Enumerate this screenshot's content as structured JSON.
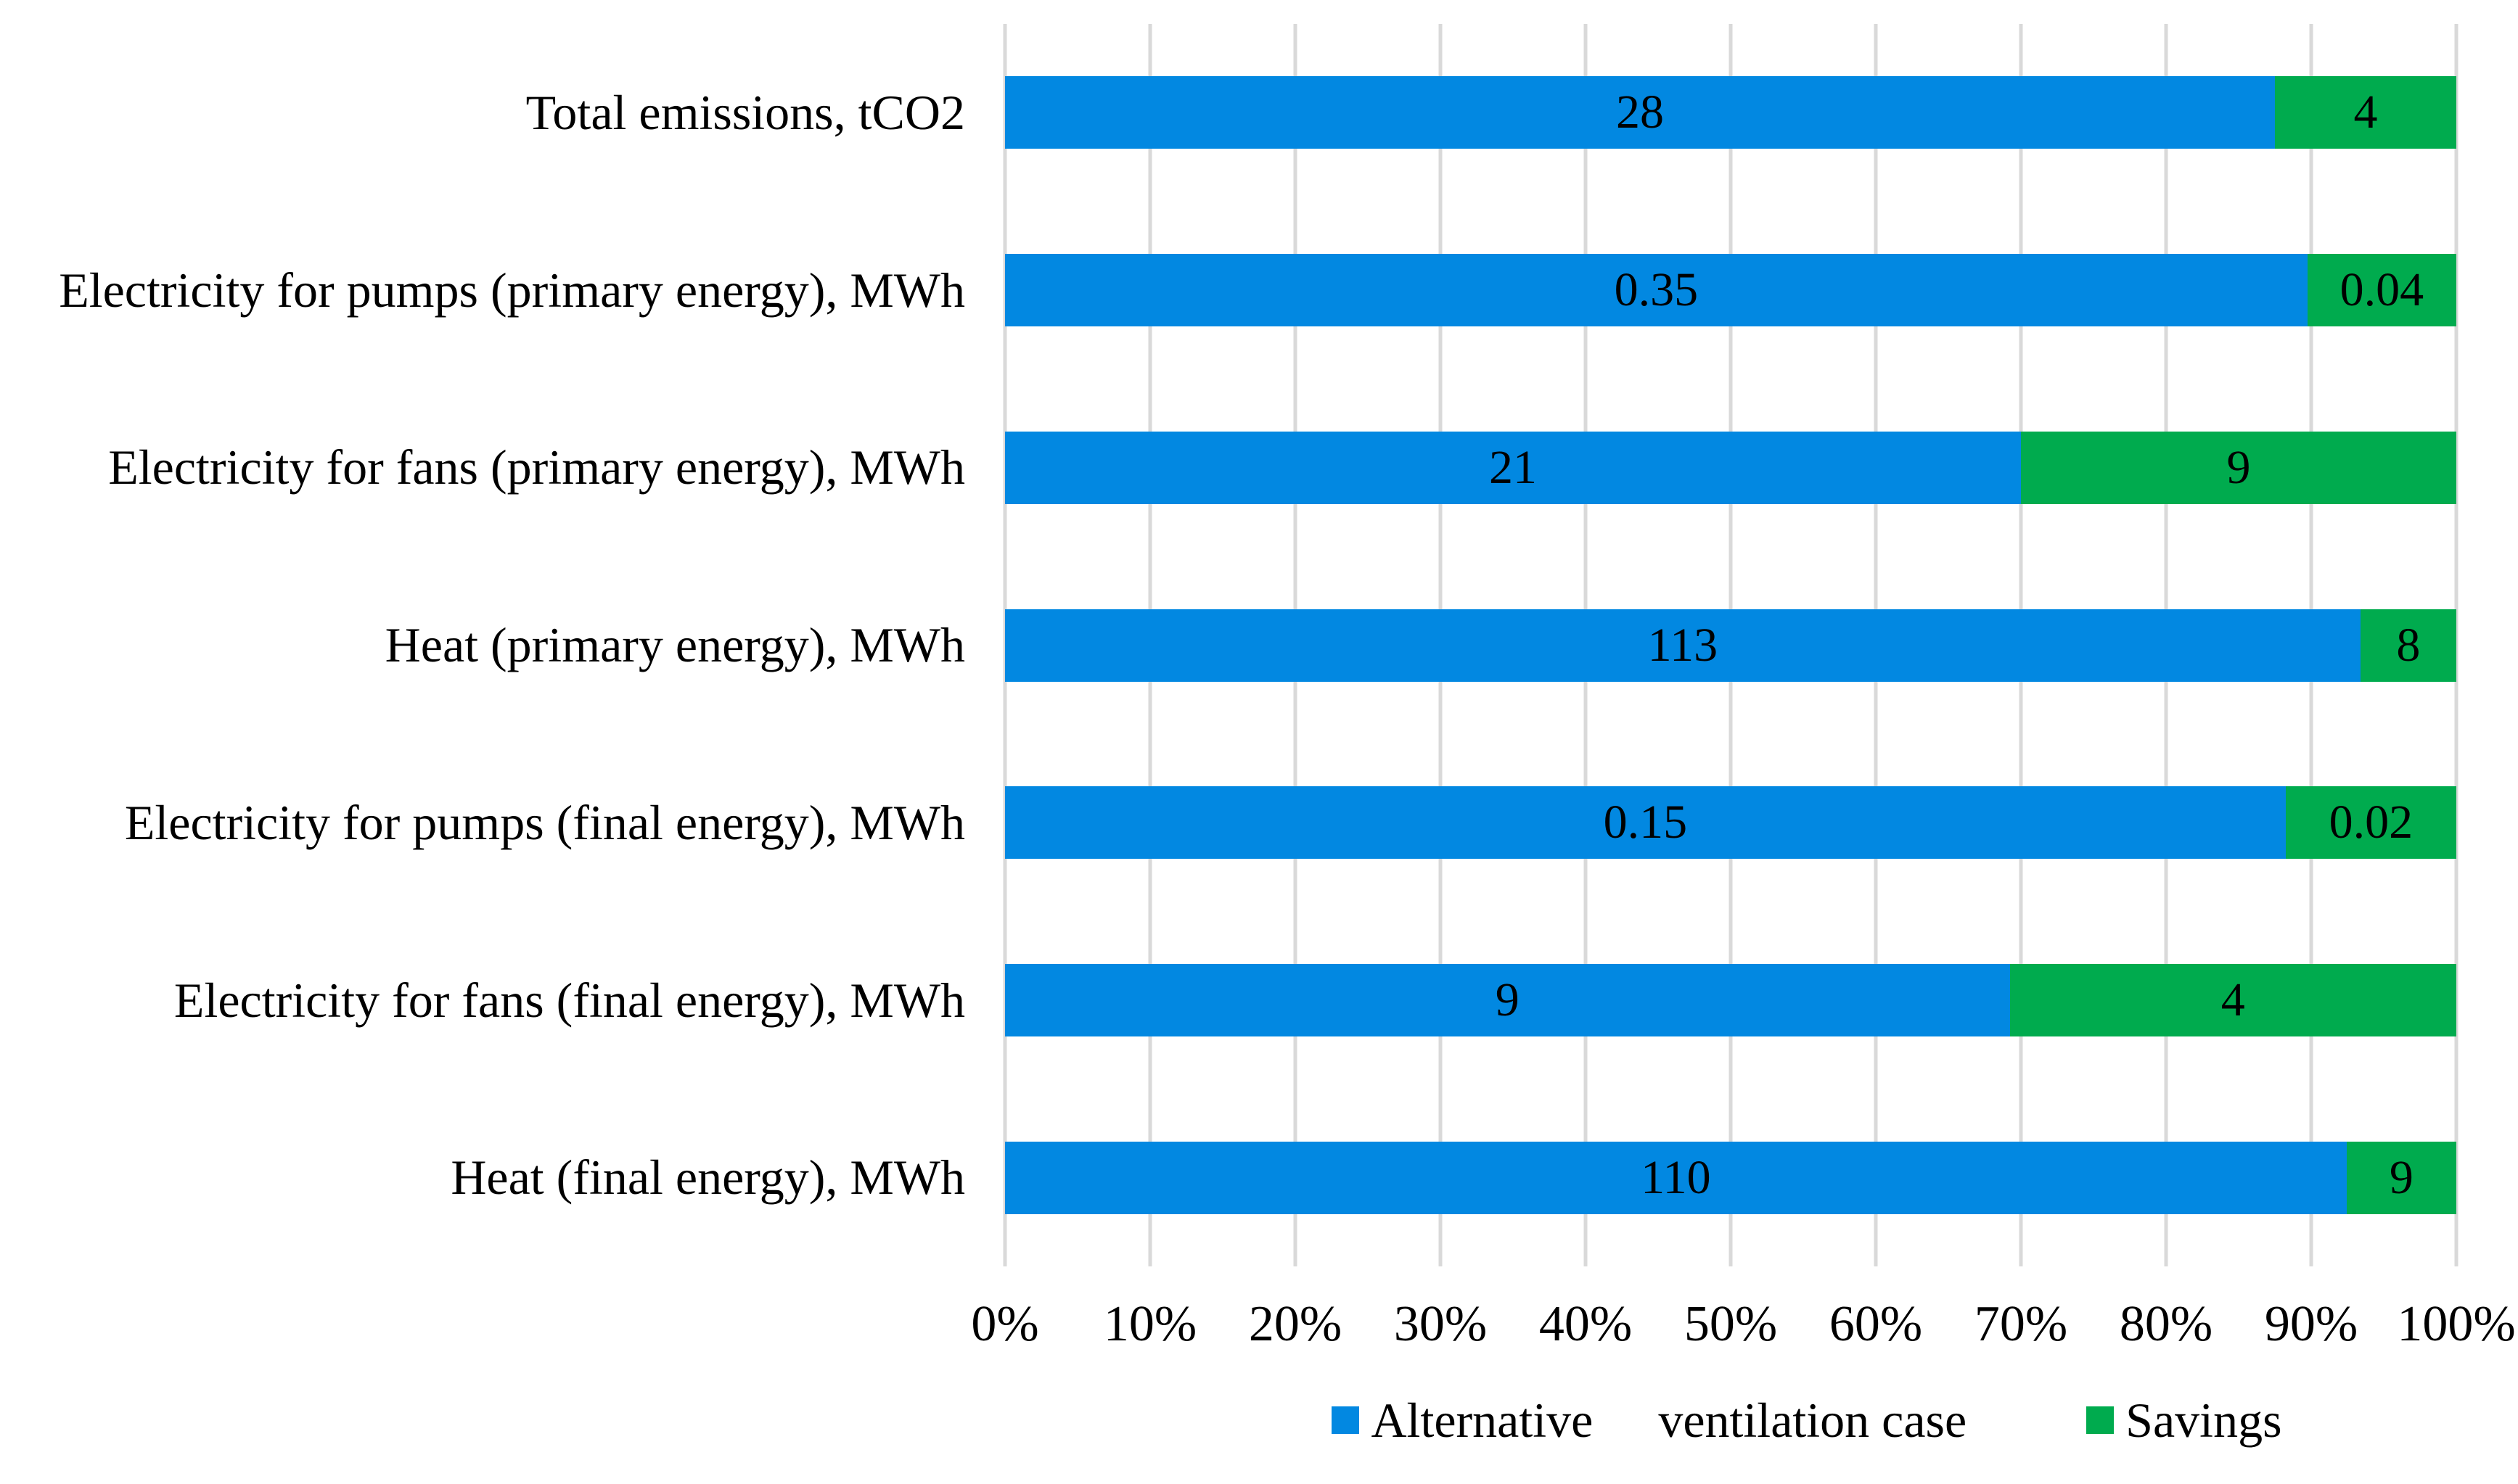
{
  "colors": {
    "alternative_blue": "#0288e1",
    "savings_green": "#00ab4e",
    "gridline_gray": "#d9d9d9",
    "text_black": "#000000",
    "background": "#ffffff"
  },
  "chart_data": {
    "type": "bar",
    "orientation": "horizontal",
    "stacked": true,
    "percent_stacked": true,
    "title": "",
    "xlabel": "",
    "ylabel": "",
    "grid": true,
    "categories": [
      "Total emissions, tCO2",
      "Electricity for pumps (primary energy), MWh",
      "Electricity for fans (primary energy), MWh",
      "Heat (primary energy), MWh",
      "Electricity for pumps (final energy), MWh",
      "Electricity for fans (final energy), MWh",
      "Heat (final energy), MWh"
    ],
    "series": [
      {
        "name": "Alternative ventilation case",
        "color": "#0288e1",
        "values": [
          28,
          0.35,
          21,
          113,
          0.15,
          9,
          110
        ],
        "labels": [
          "28",
          "0.35",
          "21",
          "113",
          "0.15",
          "9",
          "110"
        ]
      },
      {
        "name": "Savings",
        "color": "#00ab4e",
        "values": [
          4,
          0.04,
          9,
          8,
          0.02,
          4,
          9
        ],
        "labels": [
          "4",
          "0.04",
          "9",
          "8",
          "0.02",
          "4",
          "9"
        ]
      }
    ],
    "x_axis": {
      "range_percent": [
        0,
        100
      ],
      "ticks": [
        "0%",
        "10%",
        "20%",
        "30%",
        "40%",
        "50%",
        "60%",
        "70%",
        "80%",
        "90%",
        "100%"
      ]
    },
    "legend": {
      "position": "bottom",
      "item1_part1": "Alternative",
      "item1_part2": "ventilation case",
      "item2": "Savings"
    }
  }
}
